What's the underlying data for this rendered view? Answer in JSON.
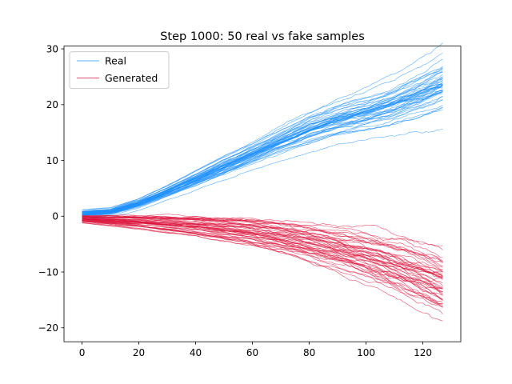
{
  "chart_data": {
    "type": "line",
    "title": "Step 1000: 50 real vs fake samples",
    "xlabel": "",
    "ylabel": "",
    "xlim": [
      -6.35,
      133.35
    ],
    "ylim": [
      -22.5,
      30.5
    ],
    "x_ticks": [
      0,
      20,
      40,
      60,
      80,
      100,
      120
    ],
    "y_ticks": [
      -20,
      -10,
      0,
      10,
      20,
      30
    ],
    "x_tick_labels": [
      "0",
      "20",
      "40",
      "60",
      "80",
      "100",
      "120"
    ],
    "y_tick_labels": [
      "−20",
      "−10",
      "0",
      "10",
      "20",
      "30"
    ],
    "grid": false,
    "legend_position": "top-left",
    "series": [
      {
        "name": "Real",
        "color": "#1e90ff",
        "sample_count": 50,
        "x": [
          0,
          10,
          20,
          30,
          40,
          50,
          60,
          70,
          80,
          90,
          100,
          110,
          120,
          127
        ],
        "mean": [
          0.5,
          0.8,
          2.3,
          4.4,
          6.6,
          8.9,
          11.1,
          13.4,
          15.6,
          17.3,
          18.5,
          20.0,
          22.0,
          23.5
        ],
        "spread": [
          0.4,
          0.4,
          0.5,
          0.6,
          0.8,
          1.0,
          1.1,
          1.3,
          1.5,
          1.6,
          1.8,
          2.0,
          2.3,
          2.6
        ]
      },
      {
        "name": "Generated",
        "color": "#dc143c",
        "sample_count": 50,
        "x": [
          0,
          10,
          20,
          30,
          40,
          50,
          60,
          70,
          80,
          90,
          100,
          110,
          120,
          127
        ],
        "mean": [
          -0.6,
          -0.9,
          -1.2,
          -1.6,
          -2.0,
          -2.6,
          -3.3,
          -4.2,
          -5.3,
          -6.6,
          -8.1,
          -9.8,
          -11.7,
          -13.2
        ],
        "spread": [
          0.4,
          0.6,
          0.8,
          1.0,
          1.2,
          1.4,
          1.6,
          1.8,
          2.1,
          2.4,
          2.7,
          3.0,
          3.3,
          3.5
        ]
      }
    ]
  }
}
